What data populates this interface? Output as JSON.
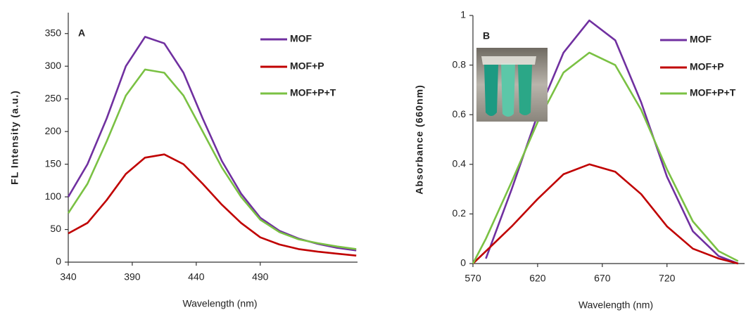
{
  "chart_data": [
    {
      "type": "line",
      "panel_label": "A",
      "x_label": "Wavelength (nm)",
      "y_label": "FL Intensity (a.u.)",
      "x": [
        340,
        355,
        370,
        385,
        400,
        415,
        430,
        445,
        460,
        475,
        490,
        505,
        520,
        535,
        550,
        565
      ],
      "xlim": [
        340,
        566
      ],
      "xticks": [
        340,
        390,
        440,
        490
      ],
      "ylim": [
        0,
        382
      ],
      "yticks": [
        0,
        50,
        100,
        150,
        200,
        250,
        300,
        350
      ],
      "legend": "upper right",
      "series": [
        {
          "name": "MOF",
          "color": "#7030a0",
          "values": [
            100,
            150,
            220,
            300,
            345,
            335,
            290,
            220,
            155,
            105,
            68,
            48,
            36,
            28,
            22,
            18
          ]
        },
        {
          "name": "MOF+P",
          "color": "#c00000",
          "values": [
            44,
            60,
            95,
            135,
            160,
            165,
            150,
            120,
            88,
            60,
            38,
            27,
            20,
            16,
            13,
            10
          ]
        },
        {
          "name": "MOF+P+T",
          "color": "#7ac143",
          "values": [
            75,
            120,
            185,
            255,
            295,
            290,
            255,
            200,
            145,
            100,
            65,
            46,
            35,
            29,
            24,
            20
          ]
        }
      ]
    },
    {
      "type": "line",
      "panel_label": "B",
      "x_label": "Wavelength (nm)",
      "y_label": "Absorbance  (660nm)",
      "x": [
        570,
        580,
        600,
        620,
        640,
        660,
        680,
        700,
        720,
        740,
        760,
        775
      ],
      "xlim": [
        570,
        780
      ],
      "xticks": [
        570,
        620,
        670,
        720
      ],
      "ylim": [
        0,
        1
      ],
      "yticks": [
        0,
        0.2,
        0.4,
        0.6,
        0.8,
        1
      ],
      "legend": "upper right",
      "series": [
        {
          "name": "MOF",
          "color": "#7030a0",
          "values": [
            null,
            0.02,
            0.3,
            0.6,
            0.85,
            0.98,
            0.9,
            0.65,
            0.35,
            0.13,
            0.03,
            0.0
          ]
        },
        {
          "name": "MOF+P",
          "color": "#c00000",
          "values": [
            0,
            0.05,
            0.15,
            0.26,
            0.36,
            0.4,
            0.37,
            0.28,
            0.15,
            0.06,
            0.02,
            0.0
          ]
        },
        {
          "name": "MOF+P+T",
          "color": "#7ac143",
          "values": [
            0,
            0.1,
            0.33,
            0.57,
            0.77,
            0.85,
            0.8,
            0.62,
            0.38,
            0.17,
            0.05,
            0.01
          ]
        }
      ]
    }
  ]
}
